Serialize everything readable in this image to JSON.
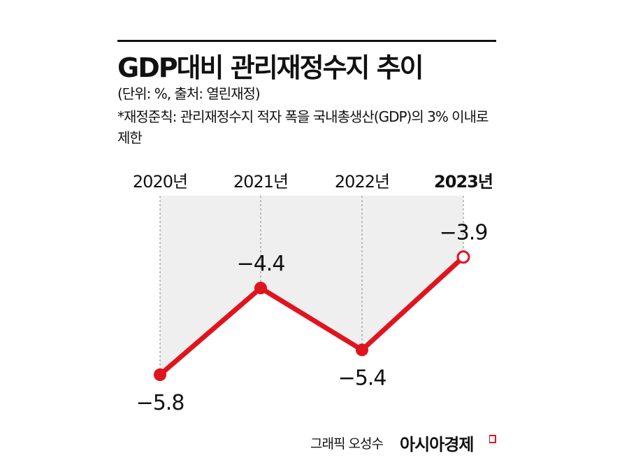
{
  "header": {
    "title": "GDP대비 관리재정수지 추이",
    "unit_source": "(단위: %, 출처: 열린재정)",
    "note": "*재정준칙: 관리재정수지 적자 폭을 국내총생산(GDP)의 3% 이내로 제한"
  },
  "footer": {
    "credit": "그래픽 오성수",
    "brand": "아시아경제"
  },
  "colors": {
    "line": "#e0141e",
    "area": "#efefef",
    "text": "#111111"
  },
  "chart_data": {
    "type": "line",
    "title": "GDP대비 관리재정수지 추이",
    "categories": [
      "2020년",
      "2021년",
      "2022년",
      "2023년"
    ],
    "values": [
      -5.8,
      -4.4,
      -5.4,
      -3.9
    ],
    "labels": [
      "−5.8",
      "−4.4",
      "−5.4",
      "−3.9"
    ],
    "highlight_last": true,
    "grid": false
  }
}
